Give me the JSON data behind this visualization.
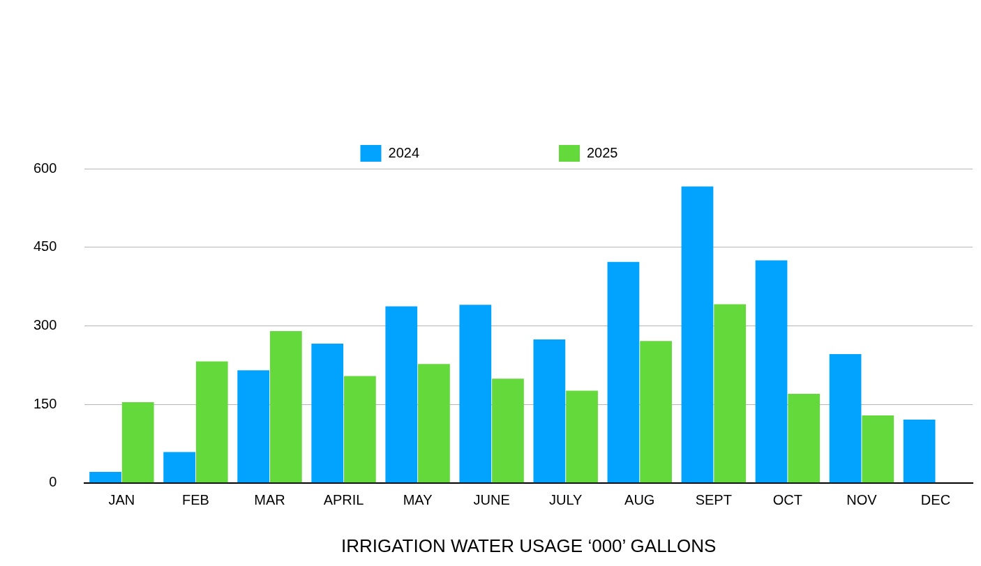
{
  "chart_data": {
    "type": "bar",
    "xlabel": "IRRIGATION WATER USAGE ‘000’ GALLONS",
    "categories": [
      "JAN",
      "FEB",
      "MAR",
      "APRIL",
      "MAY",
      "JUNE",
      "JULY",
      "AUG",
      "SEPT",
      "OCT",
      "NOV",
      "DEC"
    ],
    "series": [
      {
        "name": "2024",
        "color": "#02a3fe",
        "values": [
          21,
          59,
          215,
          266,
          337,
          340,
          274,
          422,
          566,
          425,
          246,
          121
        ]
      },
      {
        "name": "2025",
        "color": "#63d93b",
        "values": [
          154,
          232,
          290,
          204,
          227,
          199,
          176,
          271,
          341,
          170,
          129,
          null
        ]
      }
    ],
    "ylim": [
      0,
      600
    ],
    "yticks": [
      0,
      150,
      300,
      450,
      600
    ],
    "grid": "y",
    "legend": "top"
  }
}
